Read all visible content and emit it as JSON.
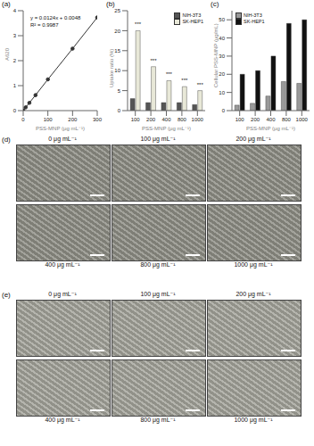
{
  "chart_data": [
    {
      "type": "line",
      "panel_label": "(a)",
      "x_label": "PSS-MNP (μg mL⁻¹)",
      "y_label": "A620",
      "x": [
        0,
        10,
        25,
        50,
        100,
        200,
        300
      ],
      "values": [
        0.01,
        0.13,
        0.31,
        0.62,
        1.25,
        2.48,
        3.73
      ],
      "color": "#333333",
      "marker": "circle",
      "line_style": "solid",
      "xlim": [
        0,
        300
      ],
      "xticks": [
        0,
        100,
        200,
        300
      ],
      "ylim": [
        0,
        4
      ],
      "yticks": [
        0,
        1,
        2,
        3,
        4
      ],
      "annotations": [
        "y = 0.0124x + 0.0048",
        "R² = 0.9987"
      ]
    },
    {
      "type": "bar",
      "panel_label": "(b)",
      "x_label": "PSS-MNP (μg mL⁻¹)",
      "y_label": "Uptake ratio (%)",
      "categories": [
        "100",
        "200",
        "400",
        "800",
        "1000"
      ],
      "series": [
        {
          "name": "NIH-3T3",
          "color": "#555555",
          "values": [
            3,
            2,
            2,
            2,
            1.5
          ]
        },
        {
          "name": "SK-HEP1",
          "color": "#e8e8d8",
          "values": [
            20,
            11,
            7.5,
            6,
            5
          ]
        }
      ],
      "ylim": [
        0,
        25
      ],
      "yticks": [
        0,
        5,
        10,
        15,
        20,
        25
      ],
      "legend": "upper right",
      "annotations": [
        "***",
        "***",
        "***",
        "***",
        "***"
      ]
    },
    {
      "type": "bar",
      "panel_label": "(c)",
      "x_label": "PSS-MNP (μg mL⁻¹)",
      "y_label": "Cellular PSS-MNP (μg/mL)",
      "categories": [
        "100",
        "200",
        "400",
        "800",
        "1000"
      ],
      "series": [
        {
          "name": "NIH-3T3",
          "color": "#999999",
          "values": [
            3,
            4,
            8,
            16,
            15
          ]
        },
        {
          "name": "SK-HEP1",
          "color": "#111111",
          "values": [
            20,
            22,
            30,
            48,
            50
          ]
        }
      ],
      "ylim": [
        0,
        55
      ],
      "yticks": [
        0,
        10,
        20,
        30,
        40,
        50
      ],
      "legend": "upper left"
    }
  ],
  "images": [
    {
      "panel_label": "(d)",
      "captions": [
        "0 μg mL⁻¹",
        "100 μg mL⁻¹",
        "200 μg mL⁻¹",
        "400 μg mL⁻¹",
        "800 μg mL⁻¹",
        "1000 μg mL⁻¹"
      ]
    },
    {
      "panel_label": "(e)",
      "captions": [
        "0 μg mL⁻¹",
        "100 μg mL⁻¹",
        "200 μg mL⁻¹",
        "400 μg mL⁻¹",
        "800 μg mL⁻¹",
        "1000 μg mL⁻¹"
      ]
    }
  ]
}
